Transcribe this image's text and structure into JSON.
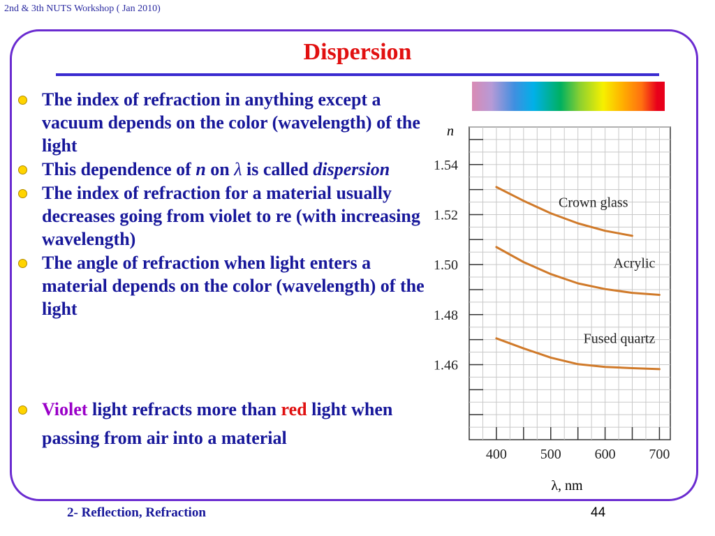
{
  "header": {
    "workshop": "2nd & 3th NUTS Workshop ( Jan 2010)"
  },
  "slide": {
    "title": "Dispersion",
    "bullets": [
      {
        "text": "The index of refraction in anything except a vacuum depends on the color (wavelength) of the light"
      },
      {
        "pre": "This dependence of ",
        "n_symbol": "n",
        "mid": " on ",
        "lambda_symbol": "λ",
        "post": " is called ",
        "term": "dispersion"
      },
      {
        "text": "The index of refraction for a material usually decreases going from violet to re (with increasing wavelength)"
      },
      {
        "text": "The angle of refraction when light enters a material depends on the color (wavelength) of the light"
      }
    ],
    "bottom_bullet": {
      "violet": "Violet",
      "mid": " light refracts more than ",
      "red": "red",
      "post": " light when passing from air into a material"
    }
  },
  "footer": {
    "section": "2- Reflection, Refraction",
    "page_number": "44"
  },
  "spectrum_colors": [
    "#d98ab4",
    "#b79ad6",
    "#3f8fe0",
    "#00b0e8",
    "#00b060",
    "#8cd030",
    "#f6f000",
    "#ffb000",
    "#ff7010",
    "#e8001a"
  ],
  "chart_data": {
    "type": "line",
    "ylabel": "n",
    "xlabel": "λ, nm",
    "xlim": [
      350,
      720
    ],
    "ylim": [
      1.43,
      1.555
    ],
    "x_ticks": [
      "400",
      "500",
      "600",
      "700"
    ],
    "y_ticks": [
      "1.46",
      "1.48",
      "1.50",
      "1.52",
      "1.54"
    ],
    "grid": true,
    "line_color": "#d07a2a",
    "series": [
      {
        "name": "Crown glass",
        "x": [
          400,
          450,
          500,
          550,
          600,
          650
        ],
        "y": [
          1.531,
          1.5255,
          1.5205,
          1.5165,
          1.5135,
          1.5115
        ]
      },
      {
        "name": "Acrylic",
        "x": [
          400,
          450,
          500,
          550,
          600,
          650,
          700
        ],
        "y": [
          1.507,
          1.501,
          1.4962,
          1.4925,
          1.4902,
          1.4887,
          1.4879
        ]
      },
      {
        "name": "Fused quartz",
        "x": [
          400,
          450,
          500,
          550,
          600,
          650,
          700
        ],
        "y": [
          1.4705,
          1.4665,
          1.4628,
          1.4602,
          1.4591,
          1.4586,
          1.4582
        ]
      }
    ]
  }
}
